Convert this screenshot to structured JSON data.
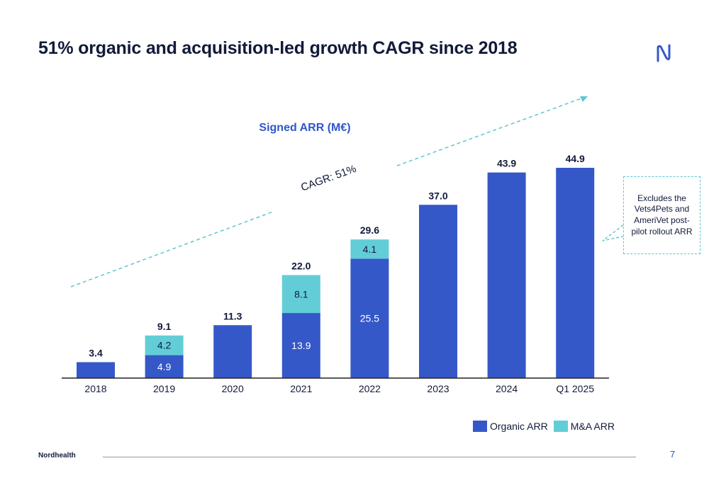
{
  "title": "51% organic and acquisition-led growth CAGR since 2018",
  "logo_icon": "nordhealth-logo-icon",
  "footer": {
    "brand": "Nordhealth",
    "page": "7"
  },
  "callout": {
    "text": "Excludes the Vets4Pets and AmeriVet post-pilot rollout ARR"
  },
  "colors": {
    "organic": "#3558c8",
    "ma": "#62cdd7",
    "text": "#121a3a",
    "accent": "#2f57c8"
  },
  "chart_data": {
    "type": "bar",
    "stacked": true,
    "title": "Signed ARR (M€)",
    "trend_label": "CAGR: 51%",
    "categories": [
      "2018",
      "2019",
      "2020",
      "2021",
      "2022",
      "2023",
      "2024",
      "Q1 2025"
    ],
    "series": [
      {
        "name": "Organic ARR",
        "values": [
          3.4,
          4.9,
          11.3,
          13.9,
          25.5,
          37.0,
          43.9,
          44.9
        ],
        "labels": [
          "",
          "4.9",
          "",
          "13.9",
          "25.5",
          "",
          "",
          ""
        ]
      },
      {
        "name": "M&A ARR",
        "values": [
          0,
          4.2,
          0,
          8.1,
          4.1,
          0,
          0,
          0
        ],
        "labels": [
          "",
          "4.2",
          "",
          "8.1",
          "4.1",
          "",
          "",
          ""
        ]
      }
    ],
    "totals": [
      "3.4",
      "9.1",
      "11.3",
      "22.0",
      "29.6",
      "37.0",
      "43.9",
      "44.9"
    ],
    "ylim": [
      0,
      45
    ],
    "grid": false,
    "legend": "bottom-right"
  }
}
